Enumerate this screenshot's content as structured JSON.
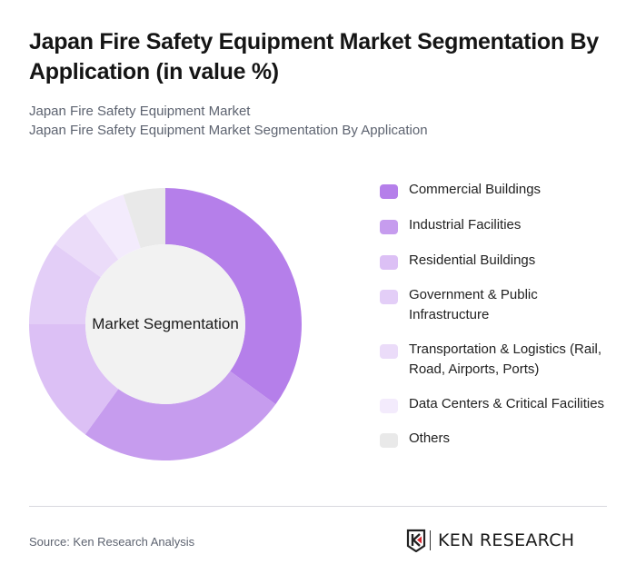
{
  "header": {
    "title": "Japan Fire Safety Equipment Market Segmentation By Application (in value %)",
    "subtitle_line1": "Japan Fire Safety Equipment Market",
    "subtitle_line2": "Japan Fire Safety Equipment Market Segmentation By Application"
  },
  "chart": {
    "center_label": "Market Segmentation"
  },
  "legend": [
    {
      "label": "Commercial Buildings",
      "color": "#b57fea"
    },
    {
      "label": "Industrial Facilities",
      "color": "#c69cee"
    },
    {
      "label": "Residential Buildings",
      "color": "#dcc0f5"
    },
    {
      "label": "Government & Public Infrastructure",
      "color": "#e3cef7"
    },
    {
      "label": "Transportation & Logistics (Rail, Road, Airports, Ports)",
      "color": "#ebdcf9"
    },
    {
      "label": "Data Centers & Critical Facilities",
      "color": "#f3ebfc"
    },
    {
      "label": "Others",
      "color": "#e9e9e9"
    }
  ],
  "footer": {
    "source": "Source: Ken Research Analysis",
    "logo_text": "KEN RESEARCH"
  },
  "chart_data": {
    "type": "pie",
    "title": "Japan Fire Safety Equipment Market Segmentation By Application (in value %)",
    "subtitle": "Japan Fire Safety Equipment Market Segmentation By Application",
    "center_label": "Market Segmentation",
    "donut": true,
    "categories": [
      "Commercial Buildings",
      "Industrial Facilities",
      "Residential Buildings",
      "Government & Public Infrastructure",
      "Transportation & Logistics (Rail, Road, Airports, Ports)",
      "Data Centers & Critical Facilities",
      "Others"
    ],
    "values": [
      35,
      25,
      15,
      10,
      5,
      5,
      5
    ],
    "colors": [
      "#b57fea",
      "#c69cee",
      "#dcc0f5",
      "#e3cef7",
      "#ebdcf9",
      "#f3ebfc",
      "#e9e9e9"
    ],
    "unit": "%",
    "legend_position": "right",
    "start_angle": "12 o'clock, clockwise"
  }
}
